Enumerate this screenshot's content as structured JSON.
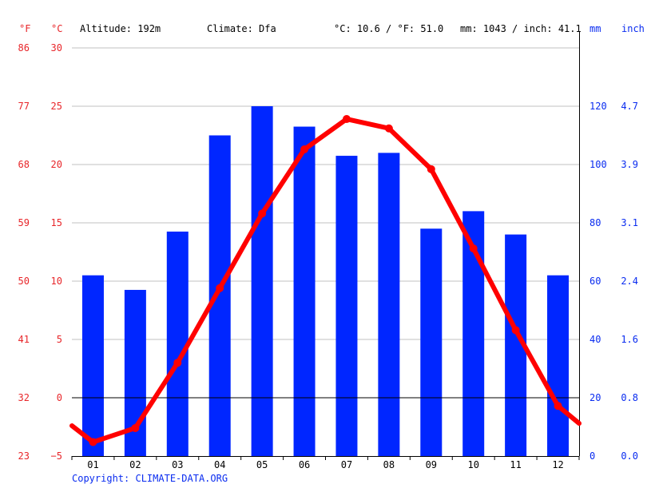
{
  "header": {
    "unit_f": "°F",
    "unit_c": "°C",
    "altitude": "Altitude: 192m",
    "climate": "Climate: Dfa",
    "avg_temp": "°C: 10.6 / °F: 51.0",
    "precip": "mm: 1043 / inch: 41.1",
    "unit_mm": "mm",
    "unit_inch": "inch"
  },
  "copyright": "Copyright: CLIMATE-DATA.ORG",
  "colors": {
    "temp": "#ff0000",
    "temp_text": "#e8262a",
    "precip": "#0026ff",
    "precip_text": "#0a2cf0",
    "grid": "#c0c0c0",
    "zero": "#000000"
  },
  "chart_data": {
    "type": "bar",
    "categories": [
      "01",
      "02",
      "03",
      "04",
      "05",
      "06",
      "07",
      "08",
      "09",
      "10",
      "11",
      "12"
    ],
    "series": [
      {
        "kind": "bar",
        "axis": "right",
        "values": [
          62,
          57,
          77,
          110,
          120,
          113,
          103,
          104,
          78,
          84,
          76,
          62
        ]
      },
      {
        "kind": "line",
        "axis": "left",
        "values": [
          -3.8,
          -2.6,
          3.0,
          9.4,
          15.8,
          21.3,
          23.9,
          23.1,
          19.6,
          12.8,
          5.8,
          -0.7
        ],
        "edge_left": -2.4,
        "edge_right": -2.2
      }
    ],
    "y_left_c": {
      "min": -5,
      "max": 30,
      "ticks": [
        -5,
        0,
        5,
        10,
        15,
        20,
        25,
        30
      ]
    },
    "y_left_f_ticks": [
      "23",
      "32",
      "41",
      "50",
      "59",
      "68",
      "77",
      "86"
    ],
    "y_right_mm": {
      "min": 0,
      "max": 140,
      "ticks": [
        0,
        20,
        40,
        60,
        80,
        100,
        120
      ]
    },
    "y_right_inch_ticks": [
      "0.0",
      "0.8",
      "1.6",
      "2.4",
      "3.1",
      "3.9",
      "4.7"
    ],
    "grid": true
  }
}
